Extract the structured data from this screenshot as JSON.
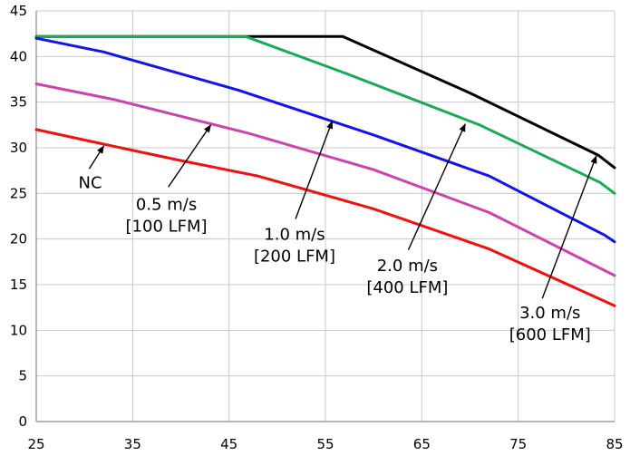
{
  "chart_data": {
    "type": "line",
    "title": "",
    "xlabel": "",
    "ylabel": "",
    "xlim": [
      25,
      85
    ],
    "ylim": [
      0,
      45
    ],
    "x_ticks": [
      25,
      35,
      45,
      55,
      65,
      75,
      85
    ],
    "y_ticks": [
      0,
      5,
      10,
      15,
      20,
      25,
      30,
      35,
      40,
      45
    ],
    "grid": true,
    "legend": "none",
    "series": [
      {
        "name": "3.0 m/s [600 LFM]",
        "color": "#000000",
        "points": [
          [
            25,
            42.2
          ],
          [
            56.8,
            42.2
          ],
          [
            70,
            36
          ],
          [
            83.3,
            29.2
          ],
          [
            85,
            27.8
          ]
        ]
      },
      {
        "name": "2.0 m/s [400 LFM]",
        "color": "#1aaa55",
        "points": [
          [
            25,
            42.2
          ],
          [
            46.7,
            42.2
          ],
          [
            57,
            38.2
          ],
          [
            71,
            32.5
          ],
          [
            83.5,
            26.2
          ],
          [
            85,
            25
          ]
        ]
      },
      {
        "name": "1.0 m/s [200 LFM]",
        "color": "#1414e6",
        "points": [
          [
            25,
            42
          ],
          [
            32,
            40.5
          ],
          [
            46,
            36.3
          ],
          [
            60,
            31.4
          ],
          [
            72,
            26.9
          ],
          [
            84,
            20.4
          ],
          [
            85,
            19.7
          ]
        ]
      },
      {
        "name": "0.5 m/s [100 LFM]",
        "color": "#cc44aa",
        "points": [
          [
            25,
            37
          ],
          [
            33,
            35.3
          ],
          [
            47,
            31.6
          ],
          [
            60,
            27.6
          ],
          [
            72,
            22.9
          ],
          [
            85,
            16
          ]
        ]
      },
      {
        "name": "NC",
        "color": "#ee1111",
        "points": [
          [
            25,
            32
          ],
          [
            32,
            30.4
          ],
          [
            40,
            28.6
          ],
          [
            48,
            26.9
          ],
          [
            60,
            23.3
          ],
          [
            72,
            18.9
          ],
          [
            85,
            12.7
          ]
        ]
      }
    ],
    "annotations": [
      {
        "id": "nc",
        "lines": [
          "NC"
        ],
        "text_at": [
          30.6,
          25.6
        ],
        "arrow_from": [
          30.5,
          27.7
        ],
        "arrow_to": [
          32.0,
          30.2
        ]
      },
      {
        "id": "v05",
        "lines": [
          "0.5 m/s",
          "[100 LFM]"
        ],
        "text_at": [
          38.5,
          23.2
        ],
        "arrow_from": [
          38.7,
          25.7
        ],
        "arrow_to": [
          43.1,
          32.5
        ]
      },
      {
        "id": "v10",
        "lines": [
          "1.0 m/s",
          "[200 LFM]"
        ],
        "text_at": [
          51.8,
          19.9
        ],
        "arrow_from": [
          51.9,
          22.2
        ],
        "arrow_to": [
          55.7,
          32.9
        ]
      },
      {
        "id": "v20",
        "lines": [
          "2.0 m/s",
          "[400 LFM]"
        ],
        "text_at": [
          63.5,
          16.5
        ],
        "arrow_from": [
          63.6,
          18.8
        ],
        "arrow_to": [
          69.5,
          32.6
        ]
      },
      {
        "id": "v30",
        "lines": [
          "3.0 m/s",
          "[600 LFM]"
        ],
        "text_at": [
          78.3,
          11.3
        ],
        "arrow_from": [
          77.5,
          13.5
        ],
        "arrow_to": [
          83.1,
          29.1
        ]
      }
    ]
  }
}
